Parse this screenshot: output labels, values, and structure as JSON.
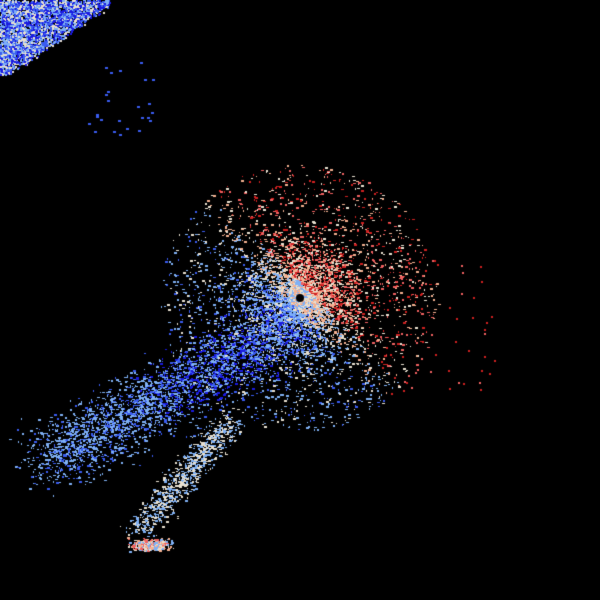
{
  "image": {
    "kind": "radar-velocity-display",
    "background_color": "#000000",
    "palette": {
      "inbound_strong": "#1a1ae0",
      "inbound_medium": "#3a5cf0",
      "inbound_light": "#7fb0f5",
      "near_zero": "#e8e0d0",
      "outbound_light": "#f5b090",
      "outbound_medium": "#f06060",
      "outbound_strong": "#d02020"
    }
  }
}
